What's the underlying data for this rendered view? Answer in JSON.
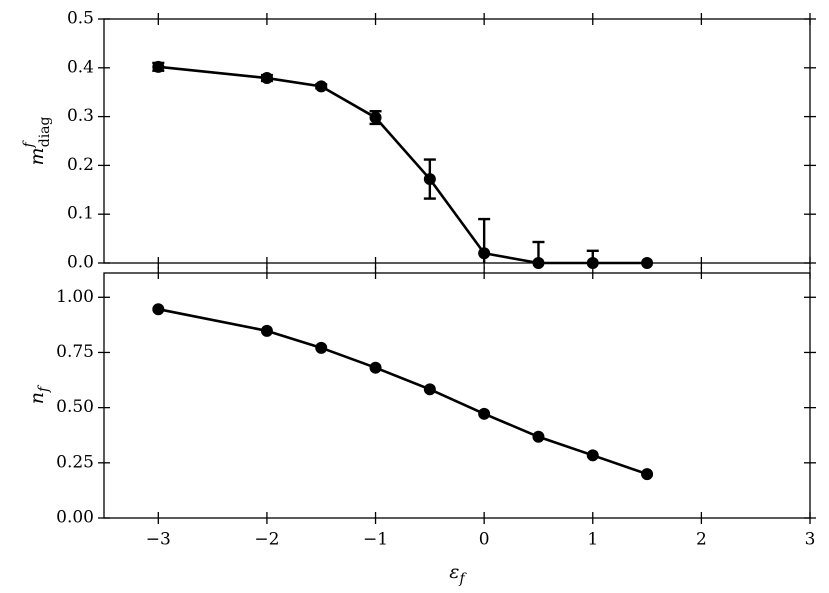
{
  "chart_data": [
    {
      "type": "line",
      "ylabel": "m",
      "ylabel_sup": "f",
      "ylabel_sub": "diag",
      "x": [
        -3,
        -2,
        -1.5,
        -1,
        -0.5,
        0,
        0.5,
        1,
        1.5
      ],
      "series": [
        {
          "color": "#000000",
          "values": [
            0.402,
            0.379,
            0.362,
            0.298,
            0.172,
            0.02,
            0.0,
            0.0,
            0.0
          ],
          "errors": [
            0.008,
            0.006,
            0.004,
            0.013,
            0.04,
            0.07,
            0.043,
            0.025,
            0.0
          ]
        }
      ],
      "xlim": [
        -3.5,
        3
      ],
      "xticks": [
        {
          "value": -3,
          "label": "−3"
        },
        {
          "value": -2,
          "label": "−2"
        },
        {
          "value": -1,
          "label": "−1"
        },
        0,
        1,
        2,
        3
      ],
      "ylim": [
        0,
        0.5
      ],
      "yticks": [
        {
          "value": 0,
          "label": "0.0"
        },
        0.1,
        0.2,
        0.3,
        0.4,
        0.5
      ]
    },
    {
      "type": "line",
      "ylabel": "n",
      "ylabel_sub": "f",
      "xlabel": "ε",
      "xlabel_sub": "f",
      "x": [
        -3,
        -2,
        -1.5,
        -1,
        -0.5,
        0,
        0.5,
        1,
        1.5
      ],
      "series": [
        {
          "color": "#000000",
          "values": [
            0.946,
            0.848,
            0.771,
            0.681,
            0.583,
            0.472,
            0.368,
            0.284,
            0.199
          ]
        }
      ],
      "xlim": [
        -3.5,
        3
      ],
      "xticks": [
        {
          "value": -3,
          "label": "−3"
        },
        {
          "value": -2,
          "label": "−2"
        },
        {
          "value": -1,
          "label": "−1"
        },
        0,
        1,
        2,
        3
      ],
      "ylim": [
        0,
        1.11
      ],
      "yticks": [
        {
          "value": 0,
          "label": "0.00"
        },
        0.25,
        {
          "value": 0.5,
          "label": "0.50"
        },
        0.75,
        {
          "value": 1,
          "label": "1.00"
        }
      ]
    }
  ]
}
